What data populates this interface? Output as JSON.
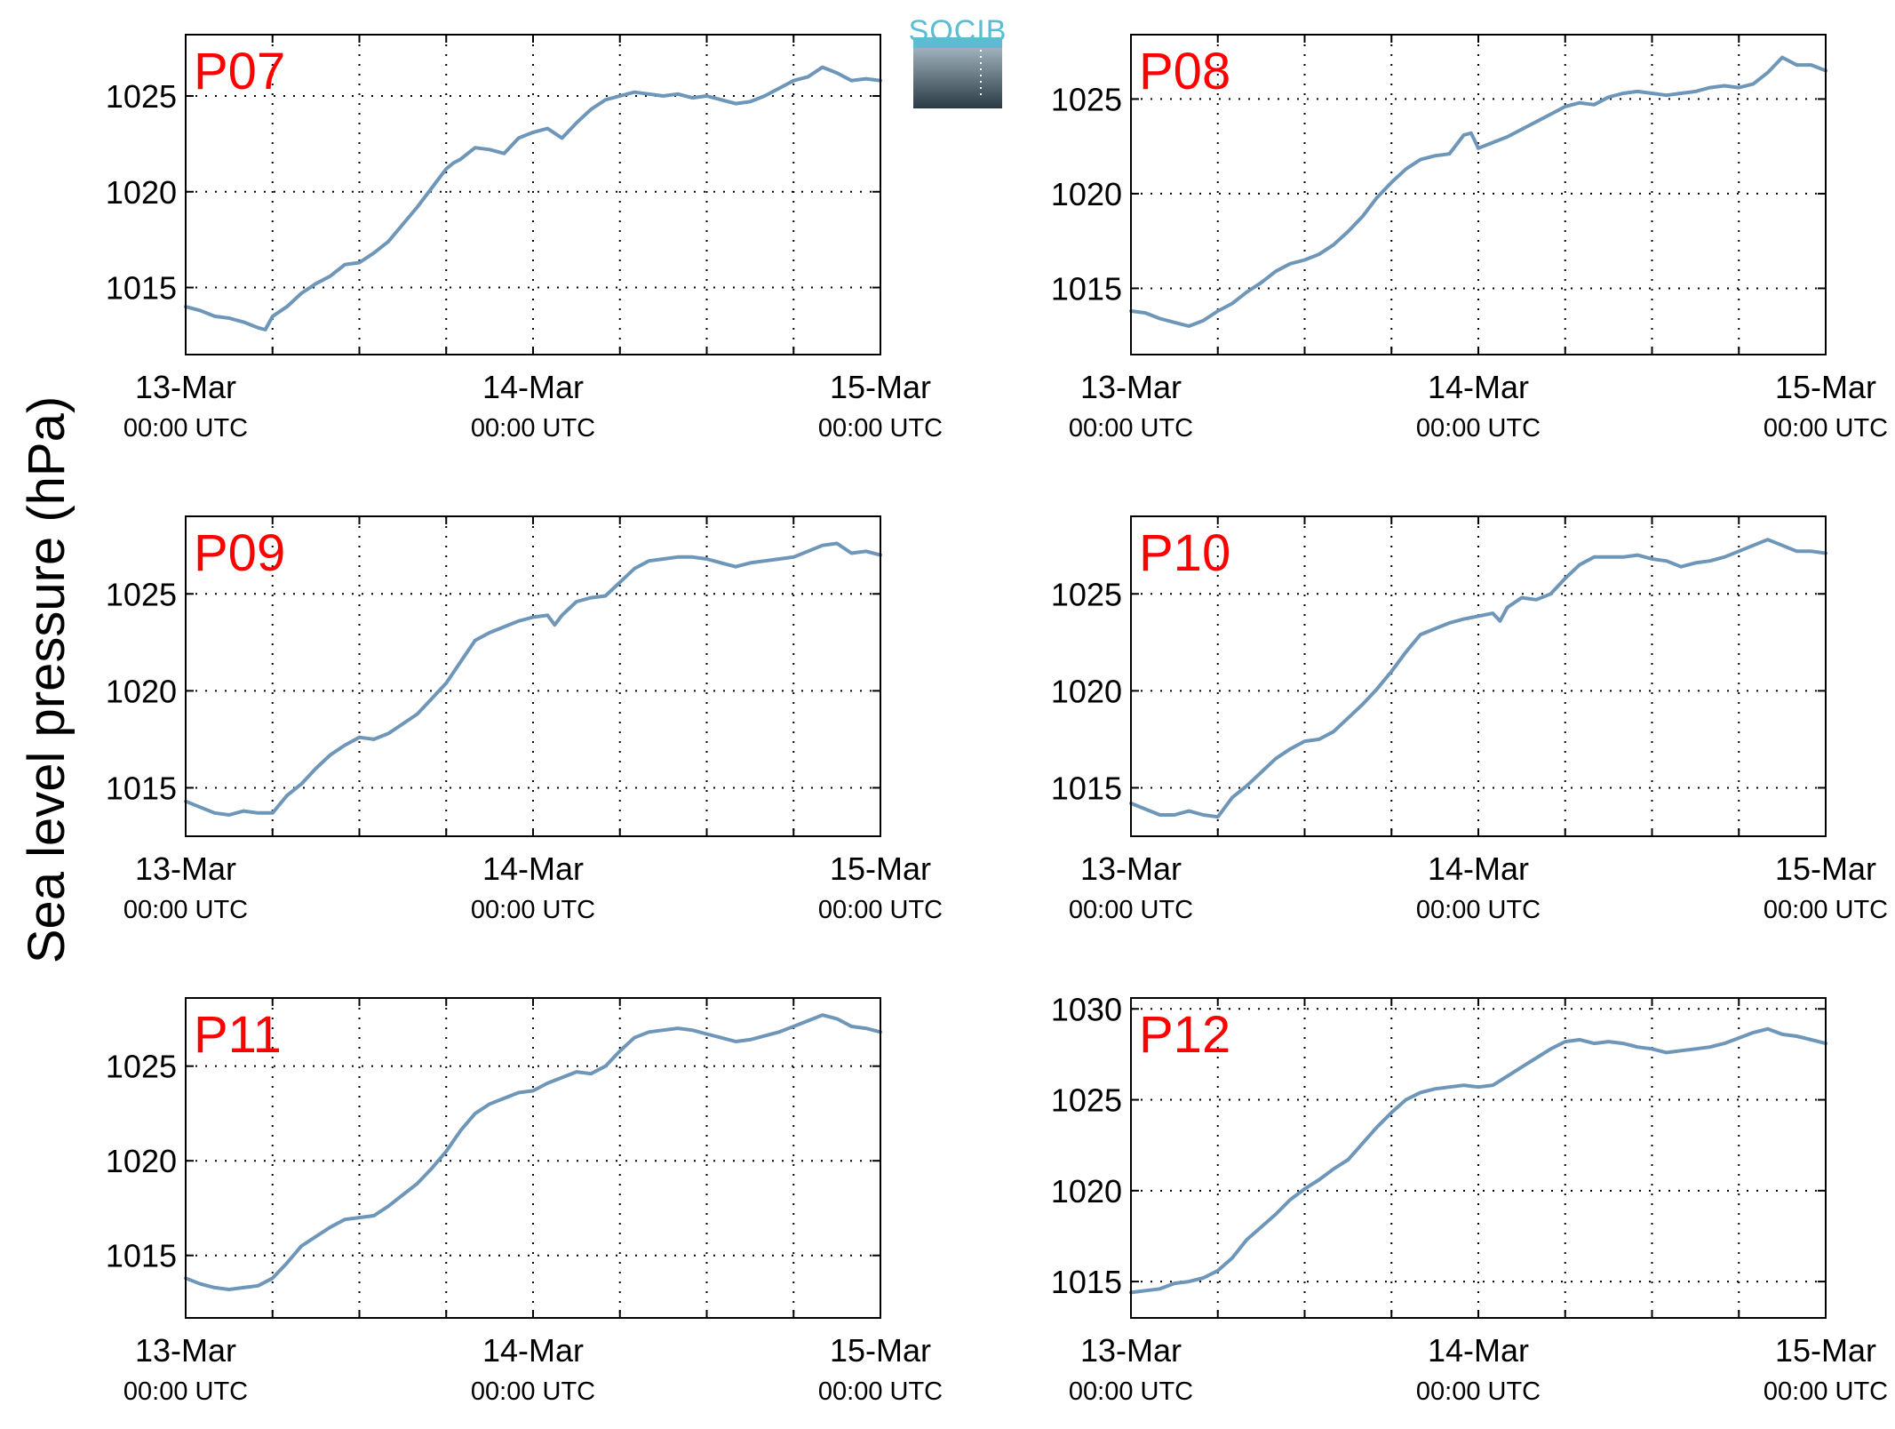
{
  "figure": {
    "ylabel": "Sea level pressure (hPa)",
    "logo_text": "SOCIB",
    "colors": {
      "line": "#6e96b9",
      "panel_label": "#ff0000",
      "grid": "#000000",
      "logo_top": "#5bbcd2",
      "logo_gradient_top": "#9fb1bc",
      "logo_gradient_bottom": "#2b3a44"
    }
  },
  "chart_data": [
    {
      "type": "line",
      "title": "P07",
      "x_ticks": [
        {
          "main": "13-Mar",
          "sub": "00:00 UTC"
        },
        {
          "main": "14-Mar",
          "sub": "00:00 UTC"
        },
        {
          "main": "15-Mar",
          "sub": "00:00 UTC"
        }
      ],
      "y_ticks": [
        "1015",
        "1020",
        "1025"
      ],
      "xlim": [
        0,
        48
      ],
      "ylim": [
        1011.5,
        1028.2
      ],
      "grid": true,
      "series": [
        {
          "x": [
            0,
            1,
            2,
            3,
            4,
            5,
            5.5,
            6,
            7,
            8,
            9,
            10,
            11,
            12,
            13,
            14,
            15,
            16,
            17,
            18,
            18.5,
            19,
            20,
            21,
            22,
            23,
            24,
            25,
            26,
            27,
            28,
            29,
            30,
            31,
            32,
            33,
            34,
            35,
            36,
            37,
            38,
            39,
            40,
            41,
            42,
            43,
            44,
            45,
            46,
            47,
            48
          ],
          "y": [
            1014.0,
            1013.8,
            1013.5,
            1013.4,
            1013.2,
            1012.9,
            1012.8,
            1013.5,
            1014.0,
            1014.7,
            1015.2,
            1015.6,
            1016.2,
            1016.3,
            1016.8,
            1017.4,
            1018.3,
            1019.2,
            1020.2,
            1021.2,
            1021.5,
            1021.7,
            1022.3,
            1022.2,
            1022.0,
            1022.8,
            1023.1,
            1023.3,
            1022.8,
            1023.6,
            1024.3,
            1024.8,
            1025.0,
            1025.2,
            1025.1,
            1025.0,
            1025.1,
            1024.9,
            1025.0,
            1024.8,
            1024.6,
            1024.7,
            1025.0,
            1025.4,
            1025.8,
            1026.0,
            1026.5,
            1026.2,
            1025.8,
            1025.9,
            1025.8
          ]
        }
      ]
    },
    {
      "type": "line",
      "title": "P08",
      "x_ticks": [
        {
          "main": "13-Mar",
          "sub": "00:00 UTC"
        },
        {
          "main": "14-Mar",
          "sub": "00:00 UTC"
        },
        {
          "main": "15-Mar",
          "sub": "00:00 UTC"
        }
      ],
      "y_ticks": [
        "1015",
        "1020",
        "1025"
      ],
      "xlim": [
        0,
        48
      ],
      "ylim": [
        1011.5,
        1028.4
      ],
      "grid": true,
      "series": [
        {
          "x": [
            0,
            1,
            2,
            3,
            4,
            5,
            6,
            7,
            8,
            9,
            10,
            11,
            12,
            13,
            14,
            15,
            16,
            17,
            18,
            19,
            20,
            21,
            22,
            23,
            23.5,
            24,
            25,
            26,
            27,
            28,
            29,
            30,
            31,
            32,
            33,
            34,
            35,
            36,
            37,
            38,
            39,
            40,
            41,
            42,
            43,
            44,
            45,
            46,
            47,
            48
          ],
          "y": [
            1013.8,
            1013.7,
            1013.4,
            1013.2,
            1013.0,
            1013.3,
            1013.8,
            1014.2,
            1014.8,
            1015.3,
            1015.9,
            1016.3,
            1016.5,
            1016.8,
            1017.3,
            1018.0,
            1018.8,
            1019.8,
            1020.6,
            1021.3,
            1021.8,
            1022.0,
            1022.1,
            1023.1,
            1023.2,
            1022.4,
            1022.7,
            1023.0,
            1023.4,
            1023.8,
            1024.2,
            1024.6,
            1024.8,
            1024.7,
            1025.1,
            1025.3,
            1025.4,
            1025.3,
            1025.2,
            1025.3,
            1025.4,
            1025.6,
            1025.7,
            1025.6,
            1025.8,
            1026.4,
            1027.2,
            1026.8,
            1026.8,
            1026.5
          ]
        }
      ]
    },
    {
      "type": "line",
      "title": "P09",
      "x_ticks": [
        {
          "main": "13-Mar",
          "sub": "00:00 UTC"
        },
        {
          "main": "14-Mar",
          "sub": "00:00 UTC"
        },
        {
          "main": "15-Mar",
          "sub": "00:00 UTC"
        }
      ],
      "y_ticks": [
        "1015",
        "1020",
        "1025"
      ],
      "xlim": [
        0,
        48
      ],
      "ylim": [
        1012.5,
        1029.0
      ],
      "grid": true,
      "series": [
        {
          "x": [
            0,
            1,
            2,
            3,
            4,
            5,
            6,
            7,
            8,
            9,
            10,
            11,
            12,
            13,
            14,
            15,
            16,
            17,
            18,
            19,
            20,
            21,
            22,
            23,
            24,
            25,
            25.5,
            26,
            27,
            28,
            29,
            30,
            31,
            32,
            33,
            34,
            35,
            36,
            37,
            38,
            39,
            40,
            41,
            42,
            43,
            44,
            45,
            46,
            47,
            48
          ],
          "y": [
            1014.3,
            1014.0,
            1013.7,
            1013.6,
            1013.8,
            1013.7,
            1013.7,
            1014.6,
            1015.2,
            1016.0,
            1016.7,
            1017.2,
            1017.6,
            1017.5,
            1017.8,
            1018.3,
            1018.8,
            1019.6,
            1020.4,
            1021.5,
            1022.6,
            1023.0,
            1023.3,
            1023.6,
            1023.8,
            1023.9,
            1023.4,
            1023.9,
            1024.6,
            1024.8,
            1024.9,
            1025.6,
            1026.3,
            1026.7,
            1026.8,
            1026.9,
            1026.9,
            1026.8,
            1026.6,
            1026.4,
            1026.6,
            1026.7,
            1026.8,
            1026.9,
            1027.2,
            1027.5,
            1027.6,
            1027.1,
            1027.2,
            1027.0
          ]
        }
      ]
    },
    {
      "type": "line",
      "title": "P10",
      "x_ticks": [
        {
          "main": "13-Mar",
          "sub": "00:00 UTC"
        },
        {
          "main": "14-Mar",
          "sub": "00:00 UTC"
        },
        {
          "main": "15-Mar",
          "sub": "00:00 UTC"
        }
      ],
      "y_ticks": [
        "1015",
        "1020",
        "1025"
      ],
      "xlim": [
        0,
        48
      ],
      "ylim": [
        1012.5,
        1029.0
      ],
      "grid": true,
      "series": [
        {
          "x": [
            0,
            1,
            2,
            3,
            4,
            5,
            6,
            7,
            8,
            9,
            10,
            11,
            12,
            13,
            14,
            15,
            16,
            17,
            18,
            19,
            20,
            21,
            22,
            23,
            25,
            25.5,
            26,
            27,
            28,
            29,
            30,
            31,
            32,
            33,
            34,
            35,
            36,
            37,
            38,
            39,
            40,
            41,
            42,
            43,
            44,
            45,
            46,
            47,
            48
          ],
          "y": [
            1014.2,
            1013.9,
            1013.6,
            1013.6,
            1013.8,
            1013.6,
            1013.5,
            1014.5,
            1015.1,
            1015.8,
            1016.5,
            1017.0,
            1017.4,
            1017.5,
            1017.9,
            1018.6,
            1019.3,
            1020.1,
            1021.0,
            1022.0,
            1022.9,
            1023.2,
            1023.5,
            1023.7,
            1024.0,
            1023.6,
            1024.3,
            1024.8,
            1024.7,
            1025.0,
            1025.8,
            1026.5,
            1026.9,
            1026.9,
            1026.9,
            1027.0,
            1026.8,
            1026.7,
            1026.4,
            1026.6,
            1026.7,
            1026.9,
            1027.2,
            1027.5,
            1027.8,
            1027.5,
            1027.2,
            1027.2,
            1027.1
          ]
        }
      ]
    },
    {
      "type": "line",
      "title": "P11",
      "x_ticks": [
        {
          "main": "13-Mar",
          "sub": "00:00 UTC"
        },
        {
          "main": "14-Mar",
          "sub": "00:00 UTC"
        },
        {
          "main": "15-Mar",
          "sub": "00:00 UTC"
        }
      ],
      "y_ticks": [
        "1015",
        "1020",
        "1025"
      ],
      "xlim": [
        0,
        48
      ],
      "ylim": [
        1011.7,
        1028.6
      ],
      "grid": true,
      "series": [
        {
          "x": [
            0,
            1,
            2,
            3,
            4,
            5,
            6,
            7,
            8,
            9,
            10,
            11,
            12,
            13,
            14,
            15,
            16,
            17,
            18,
            19,
            20,
            21,
            22,
            23,
            24,
            25,
            26,
            27,
            28,
            29,
            30,
            31,
            32,
            33,
            34,
            35,
            36,
            37,
            38,
            39,
            40,
            41,
            42,
            43,
            44,
            45,
            46,
            47,
            48
          ],
          "y": [
            1013.8,
            1013.5,
            1013.3,
            1013.2,
            1013.3,
            1013.4,
            1013.8,
            1014.6,
            1015.5,
            1016.0,
            1016.5,
            1016.9,
            1017.0,
            1017.1,
            1017.6,
            1018.2,
            1018.8,
            1019.6,
            1020.5,
            1021.6,
            1022.5,
            1023.0,
            1023.3,
            1023.6,
            1023.7,
            1024.1,
            1024.4,
            1024.7,
            1024.6,
            1025.0,
            1025.8,
            1026.5,
            1026.8,
            1026.9,
            1027.0,
            1026.9,
            1026.7,
            1026.5,
            1026.3,
            1026.4,
            1026.6,
            1026.8,
            1027.1,
            1027.4,
            1027.7,
            1027.5,
            1027.1,
            1027.0,
            1026.8
          ]
        }
      ]
    },
    {
      "type": "line",
      "title": "P12",
      "x_ticks": [
        {
          "main": "13-Mar",
          "sub": "00:00 UTC"
        },
        {
          "main": "14-Mar",
          "sub": "00:00 UTC"
        },
        {
          "main": "15-Mar",
          "sub": "00:00 UTC"
        }
      ],
      "y_ticks": [
        "1015",
        "1020",
        "1025",
        "1030"
      ],
      "xlim": [
        0,
        48
      ],
      "ylim": [
        1013.0,
        1030.6
      ],
      "grid": true,
      "series": [
        {
          "x": [
            0,
            1,
            2,
            3,
            4,
            5,
            6,
            7,
            8,
            9,
            10,
            11,
            12,
            13,
            14,
            15,
            16,
            17,
            18,
            19,
            20,
            21,
            22,
            23,
            24,
            25,
            26,
            27,
            28,
            29,
            30,
            31,
            32,
            33,
            34,
            35,
            36,
            37,
            38,
            39,
            40,
            41,
            42,
            43,
            44,
            45,
            46,
            47,
            48
          ],
          "y": [
            1014.4,
            1014.5,
            1014.6,
            1014.9,
            1015.0,
            1015.2,
            1015.6,
            1016.3,
            1017.3,
            1018.0,
            1018.7,
            1019.5,
            1020.1,
            1020.6,
            1021.2,
            1021.7,
            1022.6,
            1023.5,
            1024.3,
            1025.0,
            1025.4,
            1025.6,
            1025.7,
            1025.8,
            1025.7,
            1025.8,
            1026.3,
            1026.8,
            1027.3,
            1027.8,
            1028.2,
            1028.3,
            1028.1,
            1028.2,
            1028.1,
            1027.9,
            1027.8,
            1027.6,
            1027.7,
            1027.8,
            1027.9,
            1028.1,
            1028.4,
            1028.7,
            1028.9,
            1028.6,
            1028.5,
            1028.3,
            1028.1
          ]
        }
      ]
    }
  ]
}
